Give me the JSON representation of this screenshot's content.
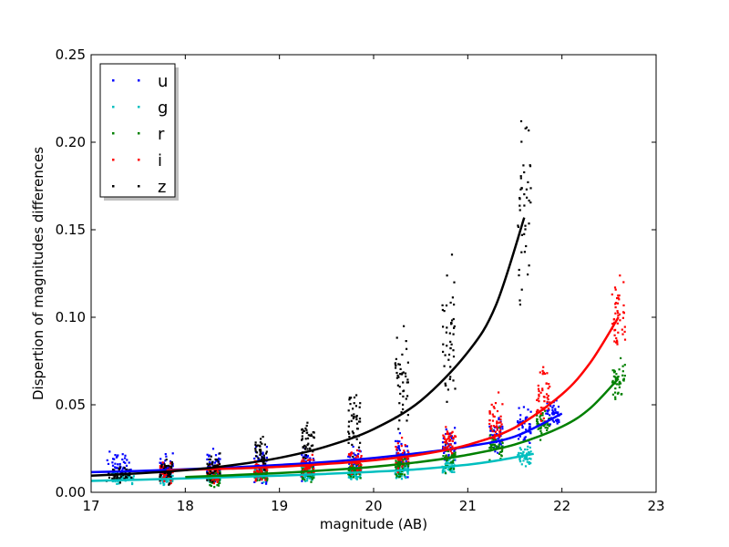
{
  "chart_data": {
    "type": "scatter",
    "title": "",
    "xlabel": "magnitude (AB)",
    "ylabel": "Dispertion of magnitudes differences",
    "xlim": [
      17,
      23
    ],
    "ylim": [
      0.0,
      0.25
    ],
    "xticks": [
      17,
      18,
      19,
      20,
      21,
      22,
      23
    ],
    "xtick_labels": [
      "17",
      "18",
      "19",
      "20",
      "21",
      "22",
      "23"
    ],
    "yticks": [
      0.0,
      0.05,
      0.1,
      0.15,
      0.2,
      0.25
    ],
    "ytick_labels": [
      "0.00",
      "0.05",
      "0.10",
      "0.15",
      "0.20",
      "0.25"
    ],
    "grid": false,
    "legend_position": "top-left",
    "series": [
      {
        "name": "u",
        "color": "#0000ff",
        "clusters": [
          {
            "x": 17.3,
            "y_center": 0.015,
            "y_spread": 0.006
          },
          {
            "x": 17.8,
            "y_center": 0.014,
            "y_spread": 0.006
          },
          {
            "x": 18.3,
            "y_center": 0.015,
            "y_spread": 0.007
          },
          {
            "x": 18.8,
            "y_center": 0.016,
            "y_spread": 0.008
          },
          {
            "x": 19.3,
            "y_center": 0.016,
            "y_spread": 0.007
          },
          {
            "x": 19.8,
            "y_center": 0.018,
            "y_spread": 0.008
          },
          {
            "x": 20.3,
            "y_center": 0.021,
            "y_spread": 0.008
          },
          {
            "x": 20.8,
            "y_center": 0.027,
            "y_spread": 0.009
          },
          {
            "x": 21.3,
            "y_center": 0.033,
            "y_spread": 0.008
          },
          {
            "x": 21.6,
            "y_center": 0.038,
            "y_spread": 0.008
          },
          {
            "x": 21.9,
            "y_center": 0.044,
            "y_spread": 0.006
          }
        ],
        "fit": {
          "x": [
            17.0,
            17.5,
            18.0,
            18.5,
            19.0,
            19.5,
            20.0,
            20.5,
            21.0,
            21.5,
            22.0
          ],
          "y": [
            0.0115,
            0.0122,
            0.0131,
            0.0142,
            0.0156,
            0.0173,
            0.0196,
            0.0225,
            0.0262,
            0.0319,
            0.045
          ]
        }
      },
      {
        "name": "g",
        "color": "#00bfbf",
        "clusters": [
          {
            "x": 17.3,
            "y_center": 0.008,
            "y_spread": 0.003
          },
          {
            "x": 17.8,
            "y_center": 0.008,
            "y_spread": 0.003
          },
          {
            "x": 18.3,
            "y_center": 0.009,
            "y_spread": 0.003
          },
          {
            "x": 18.8,
            "y_center": 0.01,
            "y_spread": 0.003
          },
          {
            "x": 19.3,
            "y_center": 0.01,
            "y_spread": 0.003
          },
          {
            "x": 19.8,
            "y_center": 0.011,
            "y_spread": 0.003
          },
          {
            "x": 20.3,
            "y_center": 0.012,
            "y_spread": 0.003
          },
          {
            "x": 20.8,
            "y_center": 0.015,
            "y_spread": 0.004
          },
          {
            "x": 21.6,
            "y_center": 0.021,
            "y_spread": 0.005
          }
        ],
        "fit": {
          "x": [
            17.0,
            17.5,
            18.0,
            18.5,
            19.0,
            19.5,
            20.0,
            20.5,
            21.0,
            21.3,
            21.7
          ],
          "y": [
            0.0065,
            0.0072,
            0.0079,
            0.0087,
            0.0095,
            0.0105,
            0.0117,
            0.0133,
            0.0158,
            0.018,
            0.022
          ]
        }
      },
      {
        "name": "r",
        "color": "#008000",
        "clusters": [
          {
            "x": 18.3,
            "y_center": 0.008,
            "y_spread": 0.004
          },
          {
            "x": 18.8,
            "y_center": 0.01,
            "y_spread": 0.004
          },
          {
            "x": 19.3,
            "y_center": 0.011,
            "y_spread": 0.004
          },
          {
            "x": 19.8,
            "y_center": 0.013,
            "y_spread": 0.004
          },
          {
            "x": 20.3,
            "y_center": 0.015,
            "y_spread": 0.005
          },
          {
            "x": 20.8,
            "y_center": 0.019,
            "y_spread": 0.005
          },
          {
            "x": 21.3,
            "y_center": 0.027,
            "y_spread": 0.006
          },
          {
            "x": 21.8,
            "y_center": 0.039,
            "y_spread": 0.006
          },
          {
            "x": 22.6,
            "y_center": 0.065,
            "y_spread": 0.008
          }
        ],
        "fit": {
          "x": [
            18.0,
            18.5,
            19.0,
            19.5,
            20.0,
            20.5,
            21.0,
            21.5,
            22.0,
            22.3,
            22.6
          ],
          "y": [
            0.0087,
            0.0098,
            0.011,
            0.0126,
            0.0146,
            0.0174,
            0.0214,
            0.0273,
            0.0375,
            0.048,
            0.065
          ]
        }
      },
      {
        "name": "i",
        "color": "#ff0000",
        "clusters": [
          {
            "x": 17.8,
            "y_center": 0.012,
            "y_spread": 0.005
          },
          {
            "x": 18.3,
            "y_center": 0.011,
            "y_spread": 0.005
          },
          {
            "x": 18.8,
            "y_center": 0.012,
            "y_spread": 0.005
          },
          {
            "x": 19.3,
            "y_center": 0.014,
            "y_spread": 0.005
          },
          {
            "x": 19.8,
            "y_center": 0.017,
            "y_spread": 0.006
          },
          {
            "x": 20.3,
            "y_center": 0.021,
            "y_spread": 0.006
          },
          {
            "x": 20.8,
            "y_center": 0.028,
            "y_spread": 0.007
          },
          {
            "x": 21.3,
            "y_center": 0.04,
            "y_spread": 0.01
          },
          {
            "x": 21.8,
            "y_center": 0.057,
            "y_spread": 0.012
          },
          {
            "x": 22.6,
            "y_center": 0.1,
            "y_spread": 0.02
          }
        ],
        "fit": {
          "x": [
            17.8,
            18.2,
            18.6,
            19.0,
            19.5,
            20.0,
            20.5,
            21.0,
            21.5,
            22.0,
            22.3,
            22.6
          ],
          "y": [
            0.0125,
            0.0131,
            0.0137,
            0.0146,
            0.0162,
            0.0183,
            0.0216,
            0.0271,
            0.037,
            0.056,
            0.074,
            0.1
          ]
        }
      },
      {
        "name": "z",
        "color": "#000000",
        "clusters": [
          {
            "x": 17.3,
            "y_center": 0.01,
            "y_spread": 0.004
          },
          {
            "x": 17.8,
            "y_center": 0.012,
            "y_spread": 0.005
          },
          {
            "x": 18.3,
            "y_center": 0.014,
            "y_spread": 0.006
          },
          {
            "x": 18.8,
            "y_center": 0.022,
            "y_spread": 0.008
          },
          {
            "x": 19.3,
            "y_center": 0.03,
            "y_spread": 0.01
          },
          {
            "x": 19.8,
            "y_center": 0.041,
            "y_spread": 0.013
          },
          {
            "x": 20.3,
            "y_center": 0.062,
            "y_spread": 0.02
          },
          {
            "x": 20.8,
            "y_center": 0.09,
            "y_spread": 0.03
          },
          {
            "x": 21.6,
            "y_center": 0.16,
            "y_spread": 0.055
          }
        ],
        "fit": {
          "x": [
            17.0,
            17.5,
            18.0,
            18.5,
            19.0,
            19.5,
            20.0,
            20.5,
            21.0,
            21.3,
            21.6
          ],
          "y": [
            0.0095,
            0.0108,
            0.0126,
            0.0155,
            0.0197,
            0.0262,
            0.0361,
            0.0523,
            0.08,
            0.107,
            0.157
          ]
        }
      }
    ]
  }
}
